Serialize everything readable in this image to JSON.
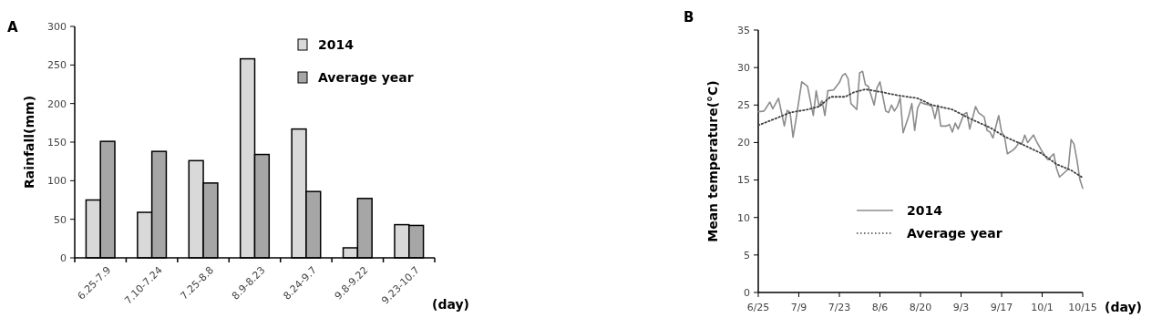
{
  "chart_data": [
    {
      "type": "bar",
      "annotations": [
        "A"
      ],
      "ylabel": "Rainfall(mm)",
      "xlabel": "(day)",
      "categories": [
        "6.25-7.9",
        "7.10-7.24",
        "7.25-8.8",
        "8.9-8.23",
        "8.24-9.7",
        "9.8-9.22",
        "9.23-10.7"
      ],
      "ylim": [
        0,
        300
      ],
      "yticks": [
        0,
        50,
        100,
        150,
        200,
        250,
        300
      ],
      "legend": "top right",
      "grid": false,
      "series": [
        {
          "name": "2014",
          "color": "#d9d9d9",
          "values": [
            75,
            59,
            126,
            258,
            167,
            13,
            43
          ]
        },
        {
          "name": "Average year",
          "color": "#a6a6a6",
          "values": [
            151,
            138,
            97,
            134,
            86,
            77,
            42
          ]
        }
      ]
    },
    {
      "type": "line",
      "annotations": [
        "B"
      ],
      "ylabel": "Mean temperature(°C)",
      "xlabel": "(day)",
      "xlim": [
        "--06-25",
        "--10-15"
      ],
      "xticks": [
        {
          "value": "--06-25",
          "label": "6/25"
        },
        {
          "value": "--07-09",
          "label": "7/9"
        },
        {
          "value": "--07-23",
          "label": "7/23"
        },
        {
          "value": "--08-06",
          "label": "8/6"
        },
        {
          "value": "--08-20",
          "label": "8/20"
        },
        {
          "value": "--09-03",
          "label": "9/3"
        },
        {
          "value": "--09-17",
          "label": "9/17"
        },
        {
          "value": "--10-01",
          "label": "10/1"
        },
        {
          "value": "--10-15",
          "label": "10/15"
        }
      ],
      "ylim": [
        0,
        35
      ],
      "yticks": [
        0,
        5,
        10,
        15,
        20,
        25,
        30,
        35
      ],
      "legend": "bottom",
      "grid": false,
      "marker": "none",
      "series": [
        {
          "name": "2014",
          "color": "#8c8c8c",
          "line_style": "solid",
          "x": [
            "--06-25",
            "--06-27",
            "--06-29",
            "--06-30",
            "--07-02",
            "--07-04",
            "--07-05",
            "--07-06",
            "--07-07",
            "--07-08",
            "--07-10",
            "--07-12",
            "--07-14",
            "--07-15",
            "--07-16",
            "--07-17",
            "--07-18",
            "--07-19",
            "--07-21",
            "--07-23",
            "--07-24",
            "--07-25",
            "--07-26",
            "--07-27",
            "--07-29",
            "--07-30",
            "--07-31",
            "--08-01",
            "--08-02",
            "--08-04",
            "--08-05",
            "--08-06",
            "--08-08",
            "--08-09",
            "--08-10",
            "--08-11",
            "--08-12",
            "--08-13",
            "--08-14",
            "--08-16",
            "--08-17",
            "--08-18",
            "--08-19",
            "--08-20",
            "--08-21",
            "--08-23",
            "--08-24",
            "--08-25",
            "--08-26",
            "--08-27",
            "--08-29",
            "--08-30",
            "--08-31",
            "--09-01",
            "--09-02",
            "--09-04",
            "--09-05",
            "--09-06",
            "--09-08",
            "--09-09",
            "--09-11",
            "--09-12",
            "--09-13",
            "--09-14",
            "--09-16",
            "--09-17",
            "--09-18",
            "--09-19",
            "--09-21",
            "--09-22",
            "--09-23",
            "--09-24",
            "--09-25",
            "--09-26",
            "--09-28",
            "--09-29",
            "--10-01",
            "--10-02",
            "--10-03",
            "--10-05",
            "--10-06",
            "--10-07",
            "--10-09",
            "--10-10",
            "--10-11",
            "--10-12",
            "--10-13",
            "--10-14",
            "--10-15"
          ],
          "values": [
            24.1,
            24.2,
            25.4,
            24.5,
            25.9,
            22.2,
            24.3,
            24.0,
            20.7,
            23.0,
            28.1,
            27.5,
            23.6,
            26.9,
            24.8,
            25.6,
            23.6,
            26.9,
            27.0,
            28.0,
            28.9,
            29.2,
            28.5,
            25.2,
            24.4,
            29.3,
            29.5,
            27.7,
            27.5,
            25.0,
            27.3,
            28.1,
            24.2,
            24.0,
            25.0,
            24.2,
            24.8,
            26.0,
            21.3,
            23.6,
            25.2,
            21.6,
            24.6,
            25.4,
            25.2,
            25.0,
            24.8,
            23.2,
            25.0,
            22.2,
            22.2,
            22.4,
            21.4,
            22.6,
            21.8,
            23.8,
            24.0,
            21.8,
            24.8,
            24.0,
            23.4,
            21.6,
            21.4,
            20.6,
            23.6,
            21.4,
            20.8,
            18.5,
            19.0,
            19.4,
            20.0,
            19.8,
            21.0,
            20.0,
            21.0,
            20.2,
            18.8,
            18.2,
            17.7,
            18.5,
            16.5,
            15.4,
            16.1,
            16.5,
            20.4,
            19.8,
            17.7,
            15.1,
            13.9
          ]
        },
        {
          "name": "Average year",
          "color": "#404040",
          "line_style": "dotted",
          "x": [
            "--06-25",
            "--07-01",
            "--07-06",
            "--07-12",
            "--07-16",
            "--07-20",
            "--07-25",
            "--07-28",
            "--08-01",
            "--08-07",
            "--08-12",
            "--08-19",
            "--08-24",
            "--08-31",
            "--09-06",
            "--09-13",
            "--09-18",
            "--09-25",
            "--10-01",
            "--10-06",
            "--10-11",
            "--10-15"
          ],
          "values": [
            22.3,
            23.2,
            24.0,
            24.4,
            24.8,
            26.1,
            26.1,
            26.7,
            27.1,
            26.7,
            26.3,
            25.9,
            25.0,
            24.4,
            23.2,
            22.0,
            20.8,
            19.6,
            18.5,
            17.1,
            16.3,
            15.3
          ]
        }
      ]
    }
  ]
}
